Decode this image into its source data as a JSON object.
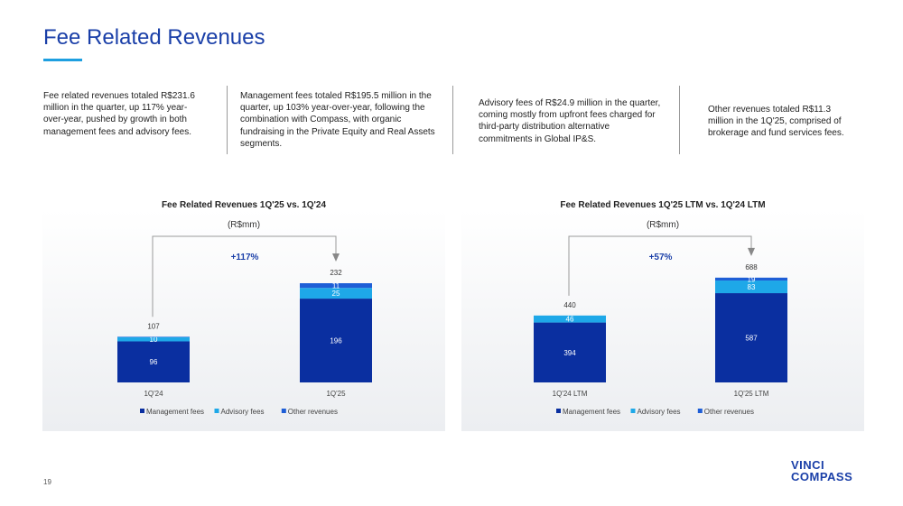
{
  "page": {
    "title": "Fee Related Revenues",
    "page_number": "19",
    "logo": {
      "line1": "VINCI",
      "line2": "COMPASS"
    }
  },
  "colors": {
    "management": "#0a2fa0",
    "advisory": "#1ea8e8",
    "other": "#1e5ed6",
    "title": "#1a3fa8",
    "accent": "#1e9fe0"
  },
  "commentary": [
    {
      "lines": [
        "Fee related revenues totaled R$231.6",
        "million in the quarter, up 117% year-",
        "over-year, pushed by growth in both",
        "management fees and advisory fees."
      ]
    },
    {
      "lines": [
        "Management fees totaled R$195.5 million in the",
        "quarter, up 103% year-over-year, following the",
        "combination with Compass, with organic",
        "fundraising in the Private Equity and Real Assets",
        "segments."
      ]
    },
    {
      "lines": [
        "Advisory fees of R$24.9 million in the quarter,",
        "coming mostly from upfront fees charged for",
        "third-party distribution alternative",
        "commitments in Global IP&S."
      ]
    },
    {
      "lines": [
        "Other revenues totaled R$11.3",
        "million in the 1Q'25, comprised of",
        "brokerage and fund services fees."
      ]
    }
  ],
  "chart_data": [
    {
      "type": "bar",
      "stacked": true,
      "title": "Fee Related Revenues 1Q'25 vs. 1Q'24",
      "subtitle": "(R$mm)",
      "categories": [
        "1Q'24",
        "1Q'25"
      ],
      "series": [
        {
          "name": "Management fees",
          "values": [
            96,
            196
          ]
        },
        {
          "name": "Advisory fees",
          "values": [
            10,
            25
          ]
        },
        {
          "name": "Other revenues",
          "values": [
            1,
            11
          ]
        }
      ],
      "segment_labels": [
        [
          "96",
          "10",
          ""
        ],
        [
          "196",
          "25",
          "11"
        ]
      ],
      "totals": [
        "107",
        "232"
      ],
      "growth_label": "+117%",
      "ylim": [
        0,
        240
      ],
      "legend": "bottom"
    },
    {
      "type": "bar",
      "stacked": true,
      "title": "Fee Related Revenues 1Q'25 LTM vs. 1Q'24 LTM",
      "subtitle": "(R$mm)",
      "categories": [
        "1Q'24 LTM",
        "1Q'25 LTM"
      ],
      "series": [
        {
          "name": "Management fees",
          "values": [
            394,
            587
          ]
        },
        {
          "name": "Advisory fees",
          "values": [
            46,
            83
          ]
        },
        {
          "name": "Other revenues",
          "values": [
            0,
            19
          ]
        }
      ],
      "segment_labels": [
        [
          "394",
          "46",
          ""
        ],
        [
          "587",
          "83",
          "19"
        ]
      ],
      "totals": [
        "440",
        "688"
      ],
      "growth_label": "+57%",
      "ylim": [
        0,
        720
      ],
      "legend": "bottom"
    }
  ]
}
